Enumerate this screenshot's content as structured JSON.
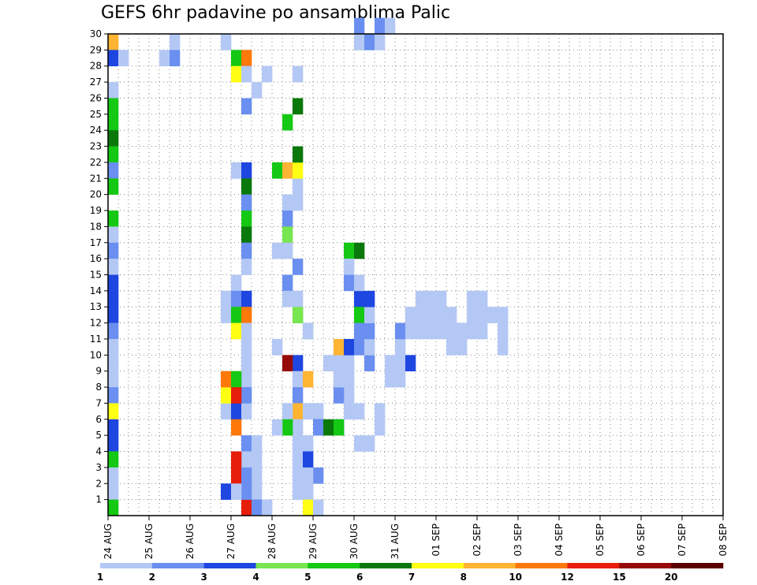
{
  "chart_data": {
    "type": "heatmap",
    "title": "GEFS 6hr padavine po ansamblima Palic",
    "xlabel": "",
    "ylabel": "",
    "x_tick_labels": [
      "24 AUG",
      "25 AUG",
      "26 AUG",
      "27 AUG",
      "28 AUG",
      "29 AUG",
      "30 AUG",
      "31 AUG",
      "01 SEP",
      "02 SEP",
      "03 SEP",
      "04 SEP",
      "05 SEP",
      "06 SEP",
      "07 SEP",
      "08 SEP"
    ],
    "y_tick_labels": [
      "1",
      "2",
      "3",
      "4",
      "5",
      "6",
      "7",
      "8",
      "9",
      "10",
      "11",
      "12",
      "13",
      "14",
      "15",
      "16",
      "17",
      "18",
      "19",
      "20",
      "21",
      "22",
      "23",
      "24",
      "25",
      "26",
      "27",
      "28",
      "29",
      "30"
    ],
    "x_range": [
      0,
      60
    ],
    "y_range": [
      0,
      30
    ],
    "grid": true,
    "color_scale": {
      "labels": [
        "1",
        "2",
        "3",
        "4",
        "5",
        "6",
        "7",
        "8",
        "10",
        "12",
        "15",
        "20"
      ],
      "colors": [
        "#b4c8f5",
        "#6a8ff0",
        "#1e46e0",
        "#78e650",
        "#14c814",
        "#0a780a",
        "#ffff14",
        "#ffb432",
        "#ff780a",
        "#e61e0a",
        "#960a0a",
        "#5a0000"
      ]
    },
    "cells": [
      [
        0,
        29,
        7
      ],
      [
        0,
        28,
        2
      ],
      [
        1,
        28,
        0
      ],
      [
        0,
        26,
        0
      ],
      [
        0,
        25,
        4
      ],
      [
        0,
        24,
        4
      ],
      [
        0,
        23,
        5
      ],
      [
        0,
        22,
        4
      ],
      [
        0,
        21,
        1
      ],
      [
        0,
        20,
        4
      ],
      [
        0,
        18,
        4
      ],
      [
        0,
        17,
        0
      ],
      [
        0,
        16,
        1
      ],
      [
        0,
        15,
        0
      ],
      [
        0,
        14,
        2
      ],
      [
        0,
        13,
        2
      ],
      [
        0,
        12,
        2
      ],
      [
        0,
        11,
        1
      ],
      [
        0,
        10,
        0
      ],
      [
        0,
        9,
        0
      ],
      [
        0,
        8,
        0
      ],
      [
        0,
        7,
        1
      ],
      [
        0,
        6,
        6
      ],
      [
        0,
        5,
        2
      ],
      [
        0,
        4,
        2
      ],
      [
        0,
        3,
        4
      ],
      [
        0,
        2,
        0
      ],
      [
        0,
        1,
        0
      ],
      [
        0,
        0,
        4
      ],
      [
        6,
        29,
        0
      ],
      [
        5,
        28,
        0
      ],
      [
        6,
        28,
        1
      ],
      [
        11,
        29,
        0
      ],
      [
        12,
        28,
        4
      ],
      [
        12,
        27,
        6
      ],
      [
        13,
        28,
        8
      ],
      [
        13,
        27,
        0
      ],
      [
        14,
        26,
        0
      ],
      [
        13,
        25,
        1
      ],
      [
        12,
        21,
        0
      ],
      [
        13,
        21,
        2
      ],
      [
        13,
        20,
        5
      ],
      [
        13,
        19,
        1
      ],
      [
        13,
        18,
        4
      ],
      [
        13,
        17,
        5
      ],
      [
        13,
        16,
        1
      ],
      [
        13,
        15,
        0
      ],
      [
        12,
        14,
        0
      ],
      [
        11,
        13,
        0
      ],
      [
        12,
        13,
        1
      ],
      [
        13,
        13,
        2
      ],
      [
        11,
        12,
        0
      ],
      [
        12,
        12,
        4
      ],
      [
        13,
        12,
        8
      ],
      [
        12,
        11,
        6
      ],
      [
        13,
        11,
        0
      ],
      [
        13,
        10,
        0
      ],
      [
        13,
        9,
        0
      ],
      [
        12,
        8,
        6
      ],
      [
        13,
        8,
        0
      ],
      [
        11,
        6,
        0
      ],
      [
        12,
        6,
        2
      ],
      [
        13,
        6,
        0
      ],
      [
        13,
        4,
        1
      ],
      [
        14,
        4,
        0
      ],
      [
        13,
        3,
        0
      ],
      [
        14,
        3,
        0
      ],
      [
        13,
        2,
        0
      ],
      [
        14,
        2,
        0
      ],
      [
        13,
        1,
        0
      ],
      [
        12,
        1,
        0
      ],
      [
        14,
        1,
        0
      ],
      [
        14,
        0,
        1
      ],
      [
        13,
        0,
        9
      ],
      [
        14,
        0,
        1
      ],
      [
        13,
        7,
        1
      ],
      [
        12,
        5,
        8
      ],
      [
        12,
        3,
        9
      ],
      [
        12,
        2,
        9
      ],
      [
        13,
        2,
        1
      ],
      [
        13,
        1,
        1
      ],
      [
        11,
        7,
        6
      ],
      [
        11,
        8,
        8
      ],
      [
        12,
        8,
        4
      ],
      [
        12,
        7,
        9
      ],
      [
        11,
        1,
        2
      ],
      [
        12,
        1,
        0
      ],
      [
        15,
        27,
        0
      ],
      [
        15,
        0,
        0
      ],
      [
        18,
        20,
        0
      ],
      [
        17,
        19,
        0
      ],
      [
        18,
        19,
        0
      ],
      [
        17,
        18,
        1
      ],
      [
        17,
        17,
        3
      ],
      [
        16,
        16,
        0
      ],
      [
        17,
        16,
        0
      ],
      [
        18,
        15,
        1
      ],
      [
        17,
        14,
        1
      ],
      [
        17,
        13,
        0
      ],
      [
        16,
        10,
        0
      ],
      [
        18,
        9,
        2
      ],
      [
        17,
        9,
        10
      ],
      [
        18,
        8,
        0
      ],
      [
        19,
        8,
        7
      ],
      [
        18,
        7,
        1
      ],
      [
        18,
        6,
        7
      ],
      [
        17,
        6,
        0
      ],
      [
        18,
        5,
        0
      ],
      [
        18,
        4,
        0
      ],
      [
        18,
        3,
        0
      ],
      [
        18,
        2,
        0
      ],
      [
        19,
        2,
        0
      ],
      [
        18,
        1,
        0
      ],
      [
        19,
        1,
        0
      ],
      [
        17,
        5,
        4
      ],
      [
        16,
        5,
        0
      ],
      [
        18,
        27,
        0
      ],
      [
        18,
        25,
        5
      ],
      [
        17,
        24,
        4
      ],
      [
        16,
        21,
        4
      ],
      [
        17,
        21,
        7
      ],
      [
        18,
        21,
        6
      ],
      [
        18,
        22,
        5
      ],
      [
        18,
        12,
        4
      ],
      [
        18,
        13,
        0
      ],
      [
        18,
        12,
        3
      ],
      [
        19,
        11,
        3
      ],
      [
        19,
        11,
        0
      ],
      [
        19,
        1,
        0
      ],
      [
        19,
        4,
        0
      ],
      [
        19,
        0,
        6
      ],
      [
        20,
        0,
        0
      ],
      [
        19,
        6,
        0
      ],
      [
        20,
        6,
        0
      ],
      [
        20,
        6,
        0
      ],
      [
        20,
        5,
        2
      ],
      [
        20,
        5,
        1
      ],
      [
        19,
        3,
        0
      ],
      [
        19,
        3,
        2
      ],
      [
        20,
        2,
        1
      ],
      [
        19,
        2,
        0
      ],
      [
        22,
        5,
        2
      ],
      [
        21,
        5,
        5
      ],
      [
        22,
        5,
        4
      ],
      [
        24,
        6,
        0
      ],
      [
        23,
        6,
        0
      ],
      [
        23,
        7,
        0
      ],
      [
        22,
        7,
        1
      ],
      [
        22,
        8,
        0
      ],
      [
        23,
        8,
        0
      ],
      [
        21,
        9,
        0
      ],
      [
        22,
        9,
        0
      ],
      [
        23,
        9,
        0
      ],
      [
        22,
        10,
        7
      ],
      [
        23,
        10,
        2
      ],
      [
        24,
        10,
        1
      ],
      [
        23,
        16,
        4
      ],
      [
        24,
        16,
        5
      ],
      [
        23,
        15,
        0
      ],
      [
        23,
        14,
        1
      ],
      [
        24,
        13,
        2
      ],
      [
        24,
        12,
        4
      ],
      [
        24,
        11,
        1
      ],
      [
        24,
        14,
        0
      ],
      [
        24,
        4,
        0
      ],
      [
        25,
        4,
        0
      ],
      [
        26,
        5,
        0
      ],
      [
        26,
        6,
        0
      ],
      [
        25,
        9,
        1
      ],
      [
        25,
        10,
        0
      ],
      [
        25,
        11,
        1
      ],
      [
        25,
        12,
        0
      ],
      [
        25,
        13,
        2
      ],
      [
        24,
        29,
        3
      ],
      [
        24,
        30,
        1
      ],
      [
        24,
        29,
        0
      ],
      [
        25,
        29,
        1
      ],
      [
        26,
        29,
        0
      ],
      [
        26,
        30,
        1
      ],
      [
        27,
        30,
        0
      ],
      [
        27,
        8,
        0
      ],
      [
        28,
        8,
        0
      ],
      [
        27,
        9,
        0
      ],
      [
        28,
        9,
        0
      ],
      [
        29,
        9,
        2
      ],
      [
        28,
        10,
        0
      ],
      [
        28,
        11,
        1
      ],
      [
        29,
        11,
        0
      ],
      [
        29,
        12,
        0
      ],
      [
        30,
        11,
        0
      ],
      [
        30,
        12,
        0
      ],
      [
        30,
        13,
        0
      ],
      [
        31,
        13,
        0
      ],
      [
        31,
        11,
        0
      ],
      [
        31,
        12,
        0
      ],
      [
        32,
        12,
        0
      ],
      [
        32,
        11,
        0
      ],
      [
        32,
        13,
        0
      ],
      [
        33,
        12,
        0
      ],
      [
        33,
        11,
        0
      ],
      [
        33,
        10,
        0
      ],
      [
        34,
        10,
        0
      ],
      [
        34,
        11,
        0
      ],
      [
        35,
        11,
        0
      ],
      [
        35,
        12,
        0
      ],
      [
        35,
        13,
        0
      ],
      [
        36,
        13,
        0
      ],
      [
        36,
        12,
        0
      ],
      [
        36,
        11,
        0
      ],
      [
        37,
        12,
        0
      ],
      [
        38,
        12,
        0
      ],
      [
        38,
        11,
        0
      ],
      [
        38,
        10,
        0
      ]
    ],
    "cell_note": "each cell: [time_step_index (6h steps from 24 AUG 00Z), member_row (1..30 → 0..29), color_index]"
  }
}
